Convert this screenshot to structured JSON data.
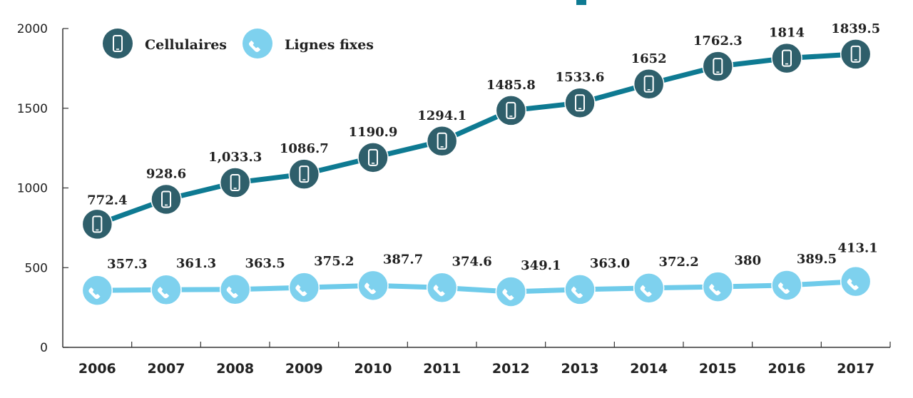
{
  "colors": {
    "cellular_line": "#0E7A92",
    "cellular_marker": "#2F5F6B",
    "fixed_line": "#6FCBEA",
    "fixed_marker": "#7ED1EE",
    "axis": "#333333",
    "title_fragment": "#0E7A92"
  },
  "chart_data": {
    "type": "line",
    "title": "",
    "xlabel": "",
    "ylabel": "",
    "categories": [
      "2006",
      "2007",
      "2008",
      "2009",
      "2010",
      "2011",
      "2012",
      "2013",
      "2014",
      "2015",
      "2016",
      "2017"
    ],
    "ylim": [
      0,
      2000
    ],
    "yticks": [
      0,
      500,
      1000,
      1500,
      2000
    ],
    "ytick_labels": [
      "0",
      "500",
      "1000",
      "1500",
      "2000"
    ],
    "legend_position": "top-left",
    "series": [
      {
        "name": "Cellulaires",
        "icon": "mobile-phone-icon",
        "values": [
          772.4,
          928.6,
          1033.3,
          1086.7,
          1190.9,
          1294.1,
          1485.8,
          1533.6,
          1652,
          1762.3,
          1814,
          1839.5
        ],
        "labels": [
          "772.4",
          "928.6",
          "1,033.3",
          "1086.7",
          "1190.9",
          "1294.1",
          "1485.8",
          "1533.6",
          "1652",
          "1762.3",
          "1814",
          "1839.5"
        ]
      },
      {
        "name": "Lignes fixes",
        "icon": "telephone-handset-icon",
        "values": [
          357.3,
          361.3,
          363.5,
          375.2,
          387.7,
          374.6,
          349.1,
          363.0,
          372.2,
          380,
          389.5,
          413.1
        ],
        "labels": [
          "357.3",
          "361.3",
          "363.5",
          "375.2",
          "387.7",
          "374.6",
          "349.1",
          "363.0",
          "372.2",
          "380",
          "389.5",
          "413.1"
        ]
      }
    ]
  }
}
